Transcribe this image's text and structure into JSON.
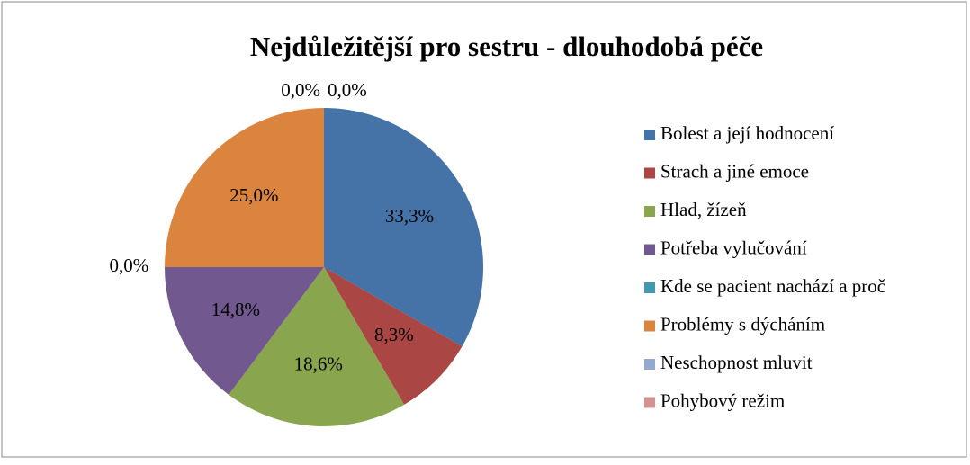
{
  "chart_data": {
    "type": "pie",
    "title": "Nejdůležitější pro sestru - dlouhodobá péče",
    "categories": [
      "Bolest a její hodnocení",
      "Strach a jiné emoce",
      "Hlad, žízeň",
      "Potřeba vylučování",
      "Kde se pacient nachází a proč",
      "Problémy s dýcháním",
      "Neschopnost mluvit",
      "Pohybový režim"
    ],
    "values": [
      33.3,
      8.3,
      18.6,
      14.8,
      0,
      25.0,
      0,
      0
    ],
    "value_labels": [
      "33,3%",
      "8,3%",
      "18,6%",
      "14,8%",
      "0,0%",
      "25,0%",
      "0,0%",
      "0,0%"
    ],
    "colors": [
      "#4572a7",
      "#aa4643",
      "#89a54e",
      "#71588f",
      "#4198af",
      "#db843d",
      "#93a9cf",
      "#d19392"
    ],
    "legend": "right"
  }
}
